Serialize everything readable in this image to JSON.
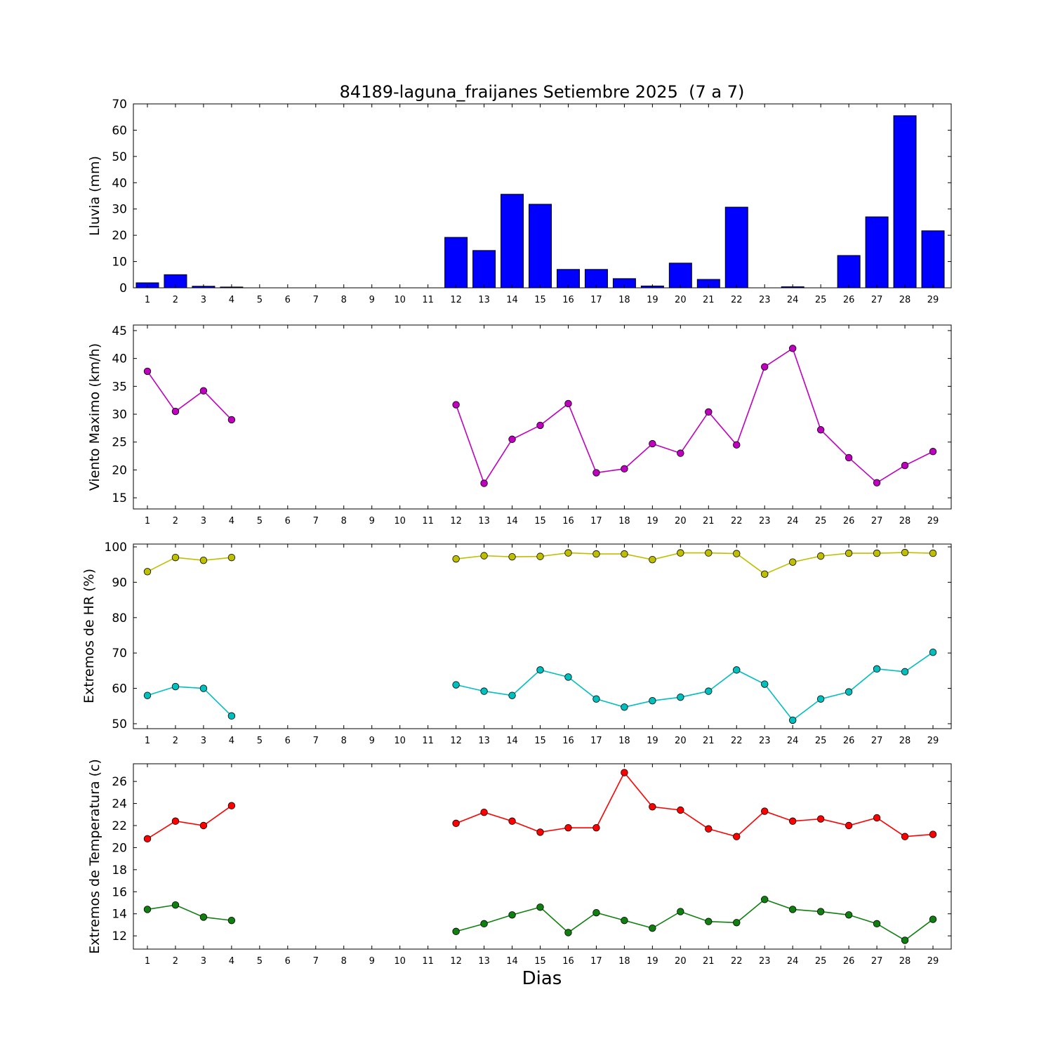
{
  "figure": {
    "title": "84189-laguna_fraijanes Setiembre 2025  (7 a 7)",
    "xlabel": "Dias",
    "background": "#ffffff",
    "frame_color": "#000000"
  },
  "days": [
    1,
    2,
    3,
    4,
    5,
    6,
    7,
    8,
    9,
    10,
    11,
    12,
    13,
    14,
    15,
    16,
    17,
    18,
    19,
    20,
    21,
    22,
    23,
    24,
    25,
    26,
    27,
    28,
    29
  ],
  "xlim": [
    0.5,
    29.65
  ],
  "chart_data": [
    {
      "type": "bar",
      "name": "lluvia",
      "ylabel": "Lluvia (mm)",
      "ylim": [
        0,
        70
      ],
      "yticks": [
        0,
        10,
        20,
        30,
        40,
        50,
        60,
        70
      ],
      "bar_width": 0.8,
      "grid": false,
      "series": [
        {
          "name": "lluvia_mm",
          "color": "#0000ff",
          "values": [
            1.9,
            5.0,
            0.6,
            0.3,
            null,
            null,
            null,
            null,
            null,
            null,
            null,
            19.2,
            14.2,
            35.6,
            31.8,
            7.0,
            7.0,
            3.5,
            0.7,
            9.4,
            3.2,
            30.7,
            0.0,
            0.4,
            0.0,
            12.3,
            27.0,
            65.5,
            21.7
          ]
        }
      ]
    },
    {
      "type": "line",
      "name": "viento-maximo",
      "ylabel": "Viento Maximo (km/h)",
      "ylim": [
        13,
        46
      ],
      "yticks": [
        15,
        20,
        25,
        30,
        35,
        40,
        45
      ],
      "grid": false,
      "series": [
        {
          "name": "viento_maximo",
          "color": "#bf00bf",
          "values": [
            37.7,
            30.5,
            34.2,
            29.0,
            null,
            null,
            null,
            null,
            null,
            null,
            null,
            31.7,
            17.6,
            25.5,
            28.0,
            31.9,
            19.5,
            20.2,
            24.7,
            23.0,
            30.4,
            24.5,
            38.5,
            41.8,
            27.2,
            22.2,
            17.7,
            20.8,
            23.3
          ]
        }
      ]
    },
    {
      "type": "line",
      "name": "extremos-hr",
      "ylabel": "Extremos de HR (%)",
      "ylim": [
        48.6,
        100.8
      ],
      "yticks": [
        50,
        60,
        70,
        80,
        90,
        100
      ],
      "grid": false,
      "series": [
        {
          "name": "hr_maxima",
          "color": "#bfbf00",
          "values": [
            93.0,
            97.0,
            96.2,
            97.0,
            null,
            null,
            null,
            null,
            null,
            null,
            null,
            96.6,
            97.5,
            97.2,
            97.3,
            98.3,
            98.0,
            98.0,
            96.4,
            98.3,
            98.3,
            98.1,
            92.3,
            95.7,
            97.4,
            98.2,
            98.2,
            98.4,
            98.2
          ]
        },
        {
          "name": "hr_minima",
          "color": "#00bfbf",
          "values": [
            58.0,
            60.5,
            60.0,
            52.2,
            null,
            null,
            null,
            null,
            null,
            null,
            null,
            61.0,
            59.2,
            58.0,
            65.2,
            63.2,
            57.0,
            54.7,
            56.5,
            57.5,
            59.2,
            65.2,
            61.2,
            51.0,
            57.0,
            59.0,
            65.5,
            64.7,
            70.2
          ]
        }
      ]
    },
    {
      "type": "line",
      "name": "extremos-temperatura",
      "ylabel": "Extremos de Temperatura (c)",
      "ylim": [
        10.8,
        27.6
      ],
      "yticks": [
        12,
        14,
        16,
        18,
        20,
        22,
        24,
        26
      ],
      "grid": false,
      "series": [
        {
          "name": "temperatura_maxima",
          "color": "#ff0000",
          "values": [
            20.8,
            22.4,
            22.0,
            23.8,
            null,
            null,
            null,
            null,
            null,
            null,
            null,
            22.2,
            23.2,
            22.4,
            21.4,
            21.8,
            21.8,
            26.8,
            23.7,
            23.4,
            21.7,
            21.0,
            23.3,
            22.4,
            22.6,
            22.0,
            22.7,
            21.0,
            21.2
          ]
        },
        {
          "name": "temperatura_minima",
          "color": "#0f800f",
          "values": [
            14.4,
            14.8,
            13.7,
            13.4,
            null,
            null,
            null,
            null,
            null,
            null,
            null,
            12.4,
            13.1,
            13.9,
            14.6,
            12.3,
            14.1,
            13.4,
            12.7,
            14.2,
            13.3,
            13.2,
            15.3,
            14.4,
            14.2,
            13.9,
            13.1,
            11.6,
            13.5
          ]
        }
      ]
    }
  ]
}
